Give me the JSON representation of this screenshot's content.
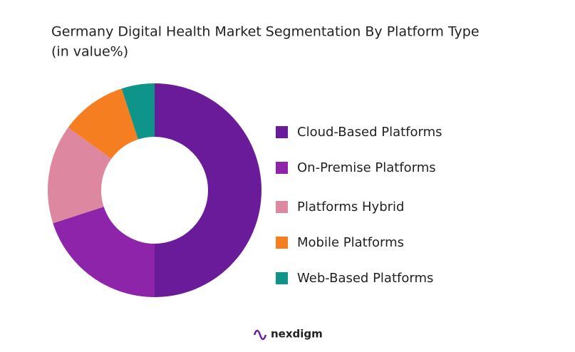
{
  "chart_data": {
    "type": "donut",
    "title": "Germany Digital Health Market Segmentation By Platform Type",
    "subtitle": "(in value%)",
    "categories": [
      "Cloud-Based Platforms",
      "On-Premise Platforms",
      "Platforms Hybrid",
      "Mobile Platforms",
      "Web-Based Platforms"
    ],
    "values": [
      50,
      20,
      15,
      10,
      5
    ],
    "colors": [
      "#6a1b9a",
      "#8e24aa",
      "#de87a0",
      "#f57f20",
      "#0e9488"
    ],
    "legend": "right"
  },
  "brand": "nexdigm"
}
